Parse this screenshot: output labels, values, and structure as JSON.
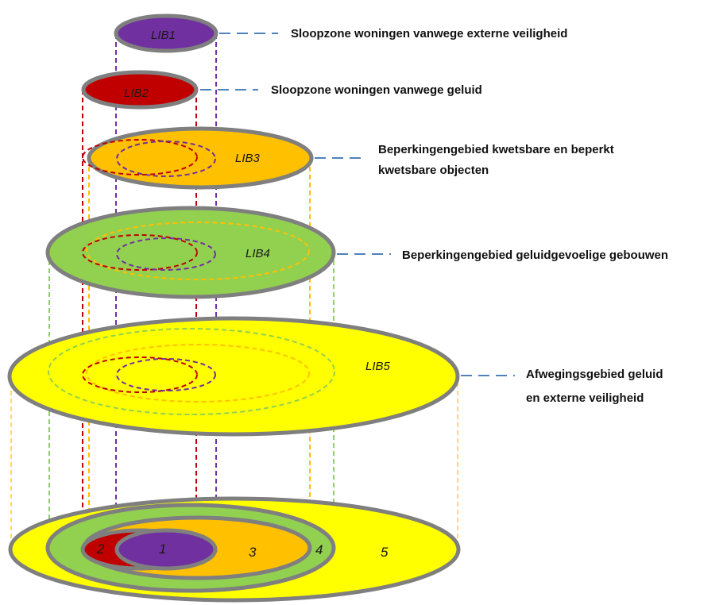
{
  "layers": [
    {
      "id": "lib1",
      "label": "LIB1",
      "number": "1",
      "color": "#7030a0",
      "line_color": "#7030a0",
      "description": [
        "Sloopzone woningen vanwege externe veiligheid"
      ]
    },
    {
      "id": "lib2",
      "label": "LIB2",
      "number": "2",
      "color": "#c00000",
      "line_color": "#c00000",
      "description": [
        "Sloopzone woningen vanwege geluid"
      ]
    },
    {
      "id": "lib3",
      "label": "LIB3",
      "number": "3",
      "color": "#ffc000",
      "line_color": "#ffc000",
      "description": [
        "Beperkingengebied kwetsbare en beperkt",
        "kwetsbare objecten"
      ]
    },
    {
      "id": "lib4",
      "label": "LIB4",
      "number": "4",
      "color": "#92d050",
      "line_color": "#92d050",
      "description": [
        "Beperkingengebied geluidgevoelige gebouwen"
      ]
    },
    {
      "id": "lib5",
      "label": "LIB5",
      "number": "5",
      "color": "#ffff00",
      "line_color": "#ffd966",
      "description": [
        "Afwegingsgebied geluid",
        "en externe veiligheid"
      ]
    }
  ],
  "style": {
    "outline_color": "#7f7f7f",
    "leader_color": "#4f81bd"
  }
}
